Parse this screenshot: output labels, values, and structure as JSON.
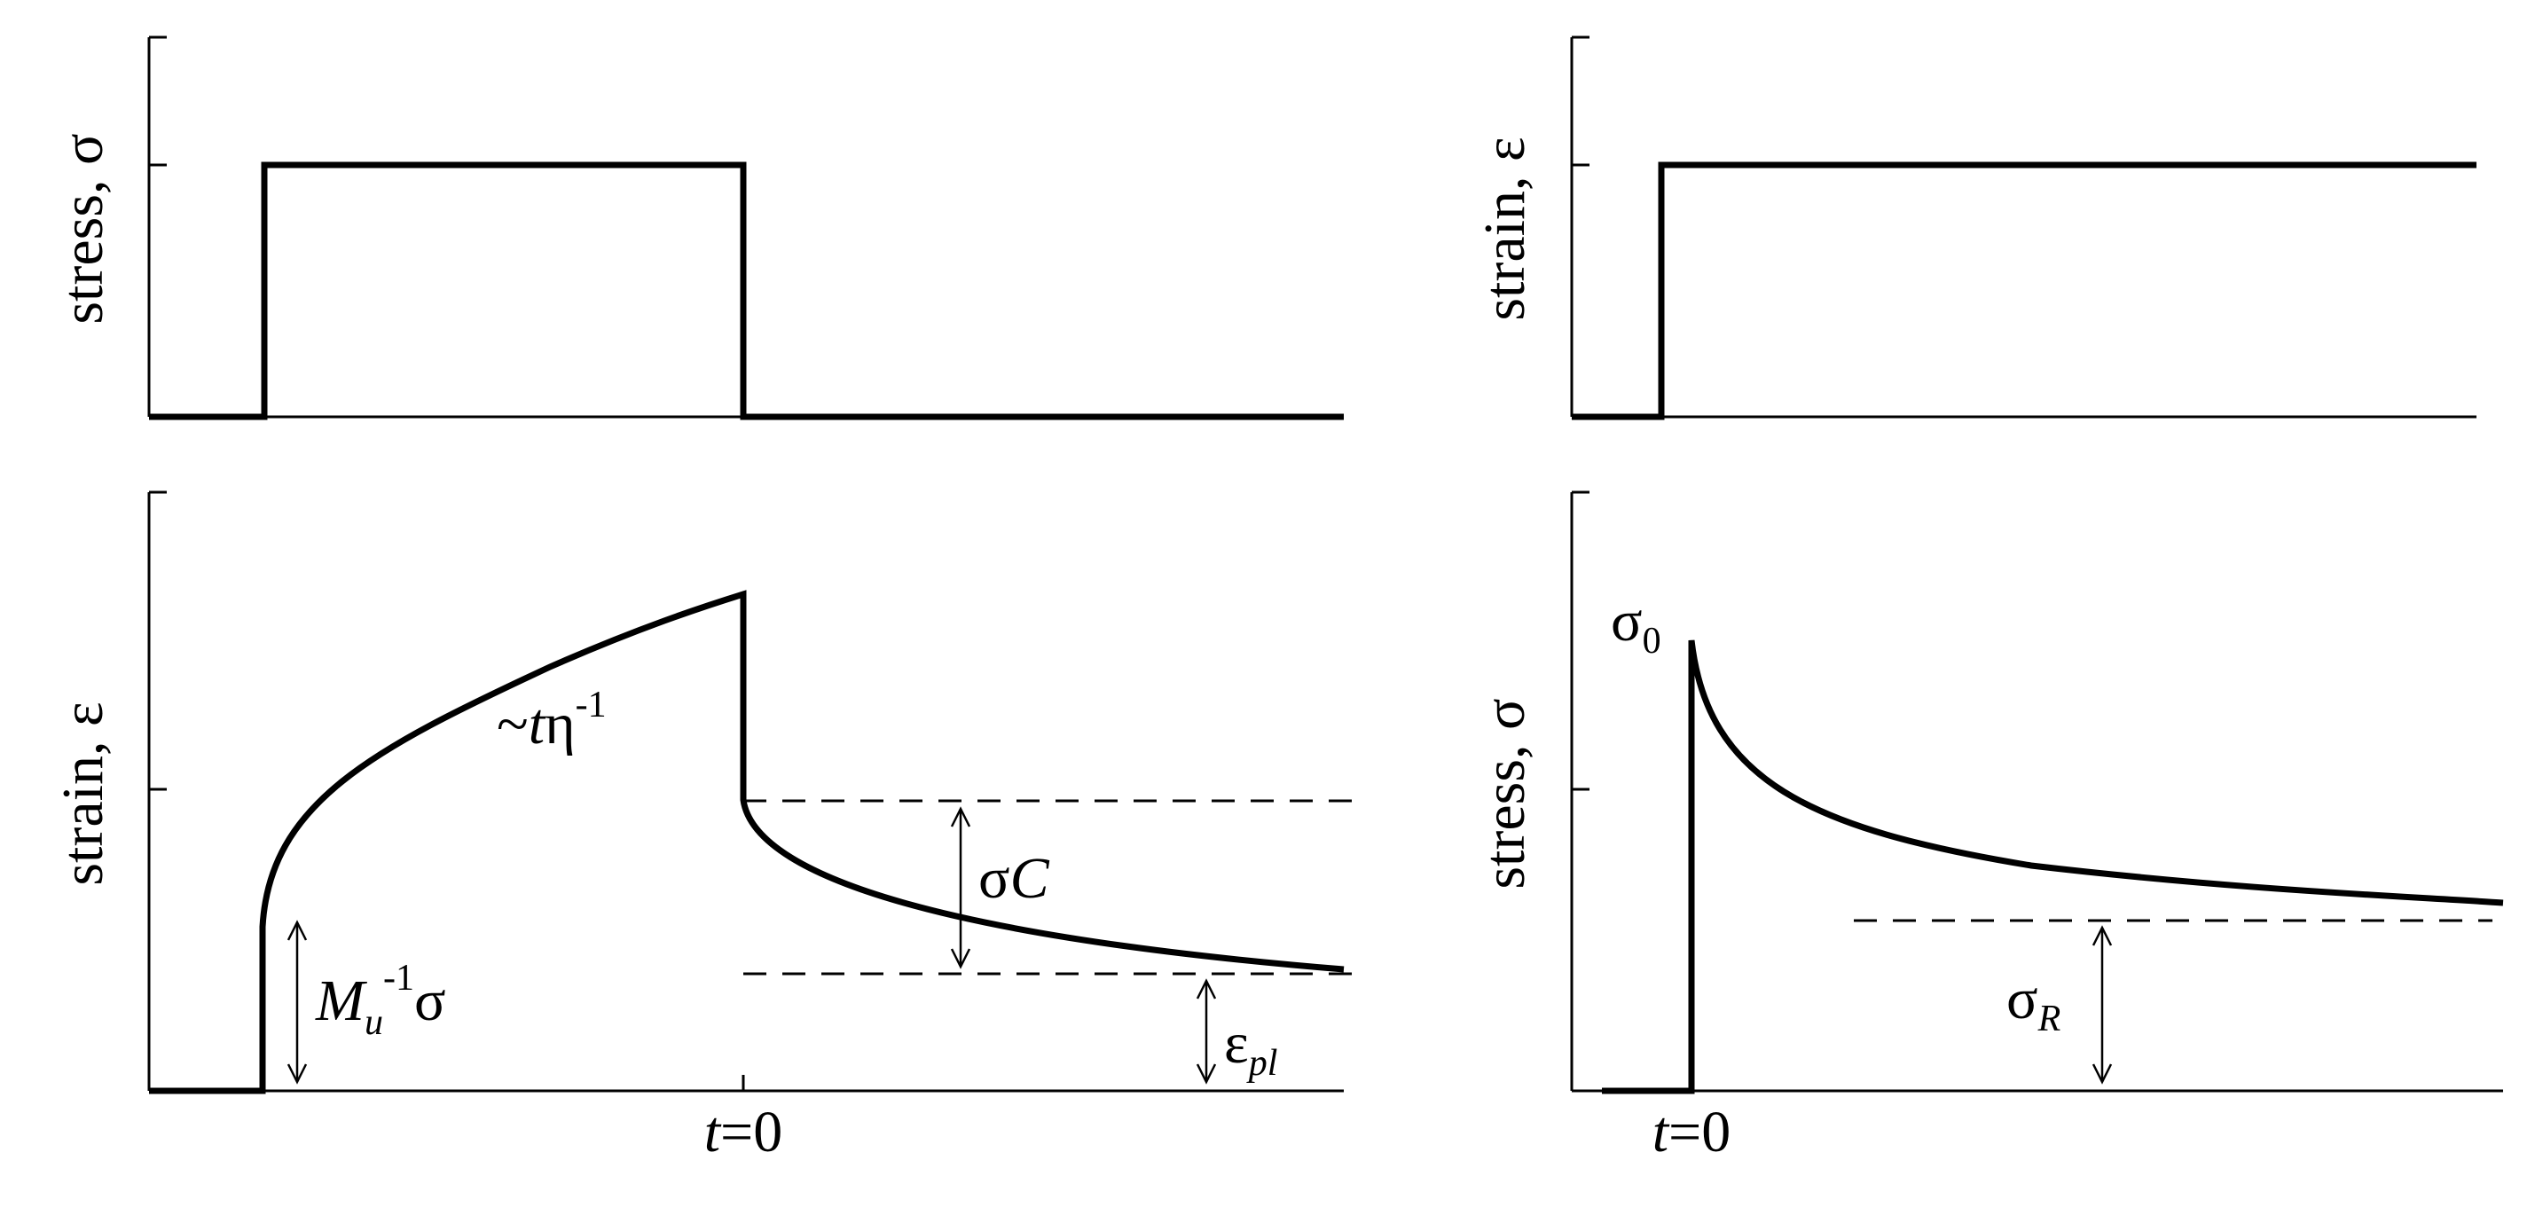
{
  "panels": {
    "top_left": {
      "ylabel": "stress, σ"
    },
    "top_right": {
      "ylabel": "strain, ε"
    },
    "bottom_left": {
      "ylabel": "strain, ε",
      "xtick": "t=0"
    },
    "bottom_right": {
      "ylabel": "stress, σ",
      "xtick": "t=0"
    }
  },
  "annotations": {
    "unrelaxed": {
      "main": "M",
      "sub": "u",
      "sup": "-1",
      "tail": "σ"
    },
    "creep_rate": {
      "prefix": "~",
      "italic": "t",
      "main": "η",
      "sup": "-1"
    },
    "recovered": {
      "main": "σ",
      "italic": "C"
    },
    "plastic": {
      "main": "ε",
      "sub": "pl"
    },
    "peak": {
      "main": "σ",
      "sub": "0"
    },
    "relaxed": {
      "main": "σ",
      "sub": "R"
    },
    "t_italic": "t",
    "t_rest": "=0"
  }
}
